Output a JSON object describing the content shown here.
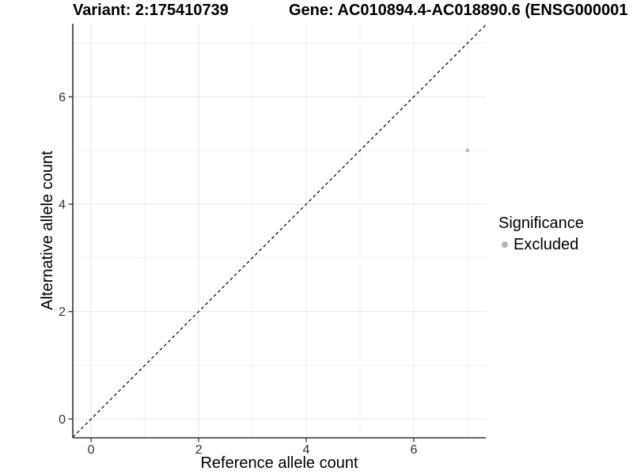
{
  "header": {
    "variant_title": "Variant: 2:175410739",
    "gene_title": "Gene: AC010894.4-AC018890.6 (ENSG000001"
  },
  "chart_data": {
    "type": "scatter",
    "xlabel": "Reference allele count",
    "ylabel": "Alternative allele count",
    "xlim": [
      -0.34,
      7.34
    ],
    "ylim": [
      -0.35,
      7.36
    ],
    "xticks": [
      0,
      2,
      4,
      6
    ],
    "yticks": [
      0,
      2,
      4,
      6
    ],
    "xgrid_minor": [
      1,
      3,
      5,
      7
    ],
    "ygrid_minor": [
      1,
      3,
      5,
      7
    ],
    "grid": true,
    "points": [
      {
        "x": 7,
        "y": 5,
        "significance": "Excluded"
      }
    ],
    "reference_line": {
      "kind": "identity",
      "style": "dashed"
    },
    "legend": {
      "position": "right",
      "title": "Significance",
      "entries": [
        {
          "label": "Excluded",
          "color": "#b5b5b5",
          "marker": "circle"
        }
      ]
    },
    "colors": {
      "grid_major": "#e8e8e8",
      "grid_minor": "#f0f0f0",
      "axis": "#333333",
      "tick": "#333333",
      "tick_text": "#333333",
      "point": "#b5b5b5",
      "reference_line": "#000000",
      "background": "#ffffff"
    }
  }
}
